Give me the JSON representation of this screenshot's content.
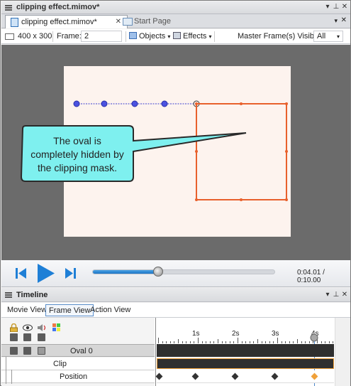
{
  "window": {
    "title": "clipping effect.mimov*",
    "menu_glyph": "▾",
    "pin_glyph": "⊥",
    "close_glyph": "✕"
  },
  "tabs": [
    {
      "label": "clipping effect.mimov*",
      "close": "✕"
    },
    {
      "label": "Start Page"
    }
  ],
  "toolbar": {
    "size": "400 x 300",
    "frame_label": "Frame:",
    "frame_value": "2",
    "objects_label": "Objects",
    "effects_label": "Effects",
    "master_label": "Master Frame(s) Visible",
    "master_value": "All"
  },
  "callout": {
    "lines": [
      "The oval is",
      "completely hidden by",
      "the clipping mask."
    ]
  },
  "player": {
    "progress": 0.36,
    "timecode": "0:04.01 / 0:10.00"
  },
  "timeline": {
    "title": "Timeline",
    "view_tabs": [
      "Movie View",
      "Frame View",
      "Action View"
    ],
    "selected_view": "Frame View",
    "ruler": [
      "1s",
      "2s",
      "3s",
      "4s"
    ],
    "rows": {
      "object": "Oval 0",
      "clip": "Clip",
      "position": "Position"
    }
  },
  "colors": {
    "accent_orange": "#e8602c",
    "path_blue": "#3a3fd0",
    "callout_fill": "#7ef0ef",
    "stage_bg": "#6b6b6b"
  }
}
